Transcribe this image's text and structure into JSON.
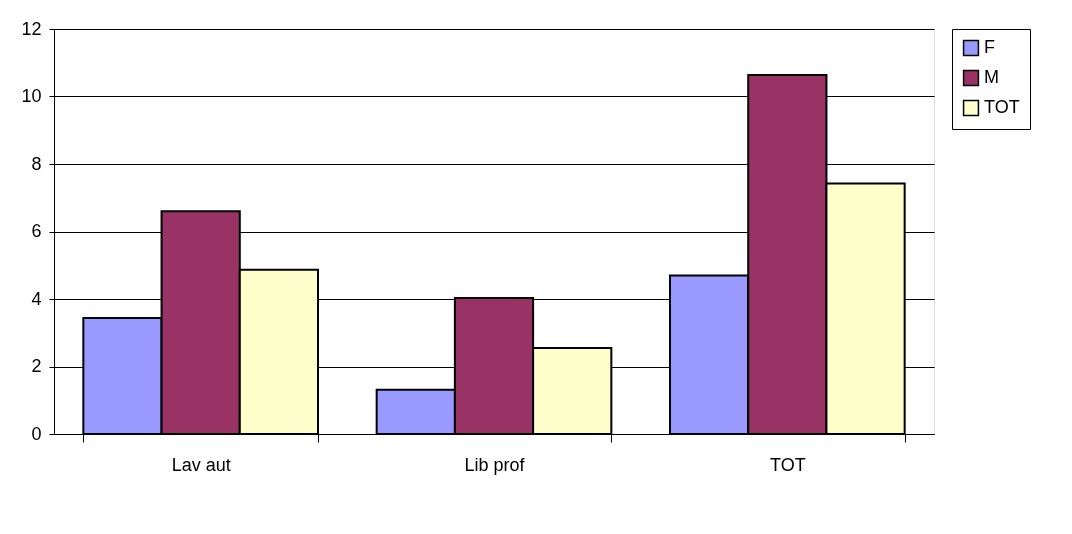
{
  "chart_data": {
    "type": "bar",
    "categories": [
      "Lav aut",
      "Lib prof",
      "TOT"
    ],
    "series": [
      {
        "name": "F",
        "color": "#9999ff",
        "values": [
          3.44,
          1.31,
          4.7
        ]
      },
      {
        "name": "M",
        "color": "#993366",
        "values": [
          6.6,
          4.03,
          10.64
        ]
      },
      {
        "name": "TOT",
        "color": "#ffffcc",
        "values": [
          4.87,
          2.55,
          7.42
        ]
      }
    ],
    "ylim": [
      0,
      12
    ],
    "yticks": [
      0,
      2,
      4,
      6,
      8,
      10,
      12
    ],
    "grid": "y",
    "legend": "right"
  }
}
